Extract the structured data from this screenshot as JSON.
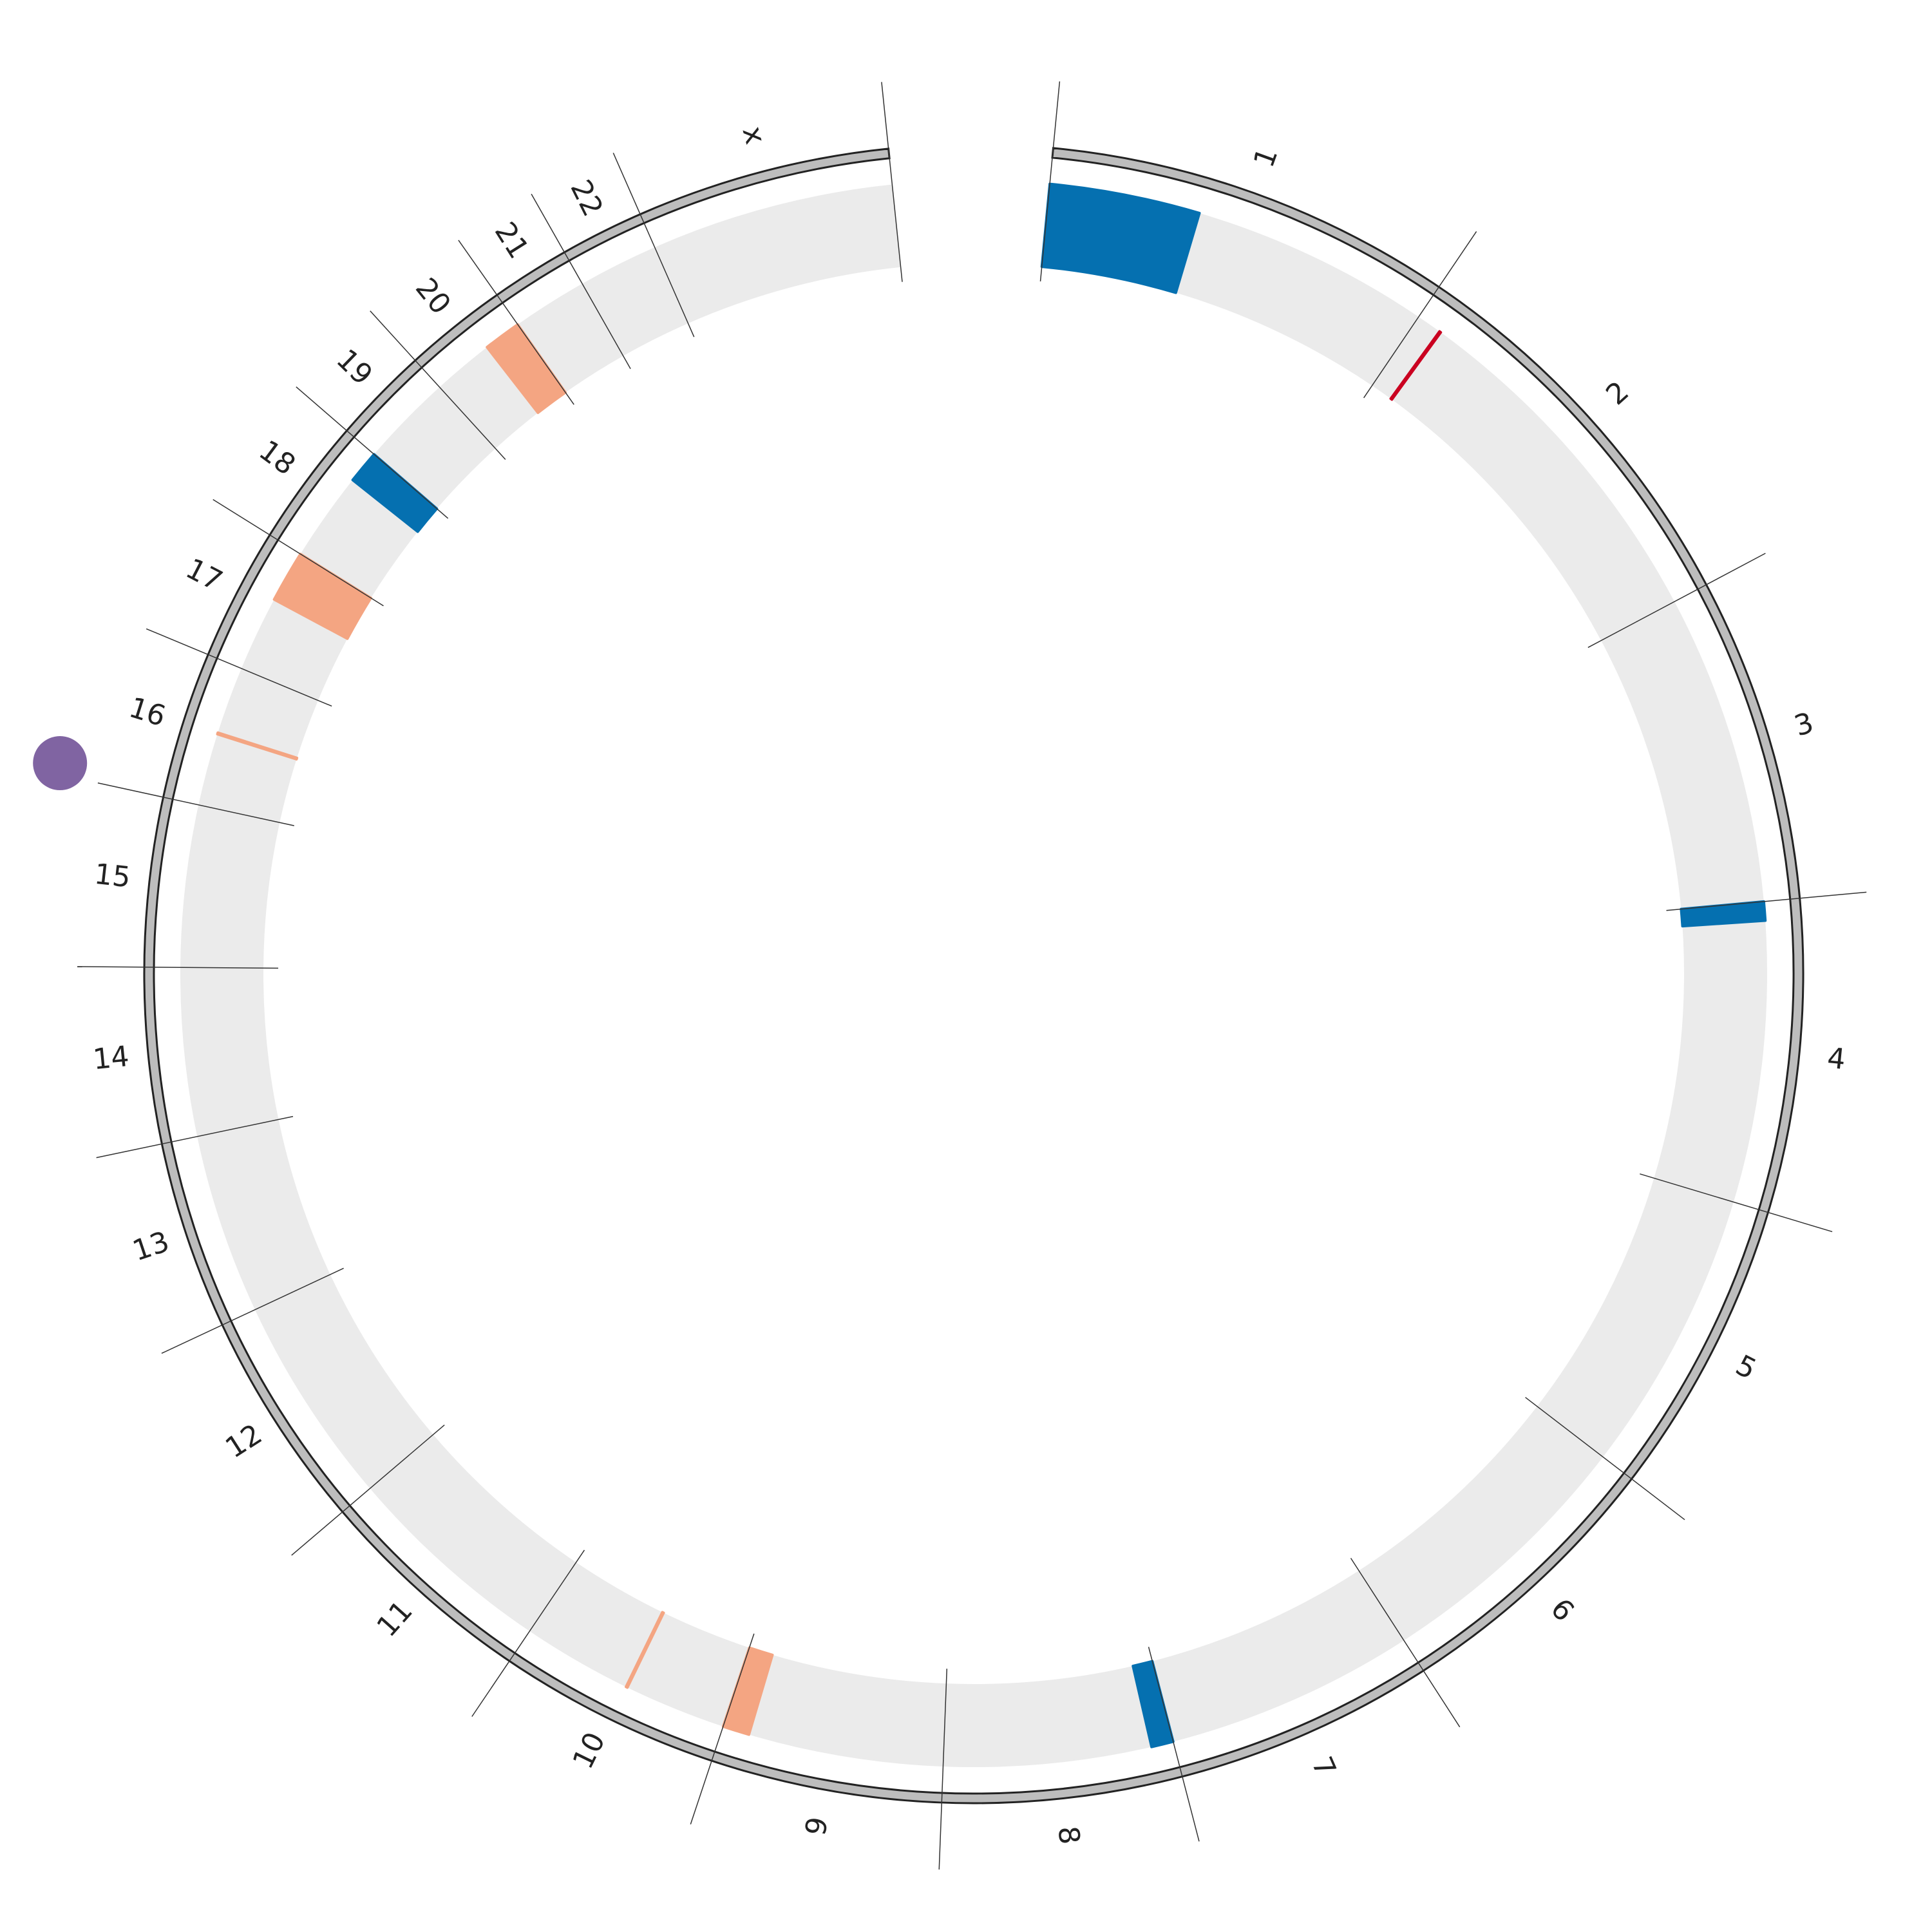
{
  "chart_data": {
    "type": "circos",
    "chromosomes": [
      {
        "name": "1",
        "length": 249
      },
      {
        "name": "2",
        "length": 243
      },
      {
        "name": "3",
        "length": 198
      },
      {
        "name": "4",
        "length": 191
      },
      {
        "name": "5",
        "length": 181
      },
      {
        "name": "6",
        "length": 171
      },
      {
        "name": "7",
        "length": 159
      },
      {
        "name": "8",
        "length": 146
      },
      {
        "name": "9",
        "length": 141
      },
      {
        "name": "10",
        "length": 136
      },
      {
        "name": "11",
        "length": 135
      },
      {
        "name": "12",
        "length": 134
      },
      {
        "name": "13",
        "length": 115
      },
      {
        "name": "14",
        "length": 107
      },
      {
        "name": "15",
        "length": 103
      },
      {
        "name": "16",
        "length": 90
      },
      {
        "name": "17",
        "length": 81
      },
      {
        "name": "18",
        "length": 78
      },
      {
        "name": "19",
        "length": 59
      },
      {
        "name": "20",
        "length": 63
      },
      {
        "name": "21",
        "length": 48
      },
      {
        "name": "22",
        "length": 51
      },
      {
        "name": "x",
        "length": 155
      }
    ],
    "track_color": "#ebebeb",
    "ring_color": "#bdbdbd",
    "regions": [
      {
        "chromosome": "1",
        "start": 0,
        "end": 96,
        "color": "#0570b0"
      },
      {
        "chromosome": "2",
        "start": 16,
        "end": 17,
        "color": "#ca0020"
      },
      {
        "chromosome": "4",
        "start": 0,
        "end": 12,
        "color": "#0570b0"
      },
      {
        "chromosome": "8",
        "start": 0,
        "end": 14,
        "color": "#0570b0"
      },
      {
        "chromosome": "9",
        "start": 124,
        "end": 141,
        "color": "#f4a582"
      },
      {
        "chromosome": "10",
        "start": 65,
        "end": 66,
        "color": "#f4a582"
      },
      {
        "chromosome": "16",
        "start": 46,
        "end": 47,
        "color": "#f4a582"
      },
      {
        "chromosome": "17",
        "start": 48,
        "end": 81,
        "color": "#f4a582"
      },
      {
        "chromosome": "18",
        "start": 57,
        "end": 78,
        "color": "#0570b0"
      },
      {
        "chromosome": "20",
        "start": 39,
        "end": 63,
        "color": "#f4a582"
      }
    ],
    "points": [
      {
        "chromosome": "16",
        "position": 6,
        "color": "#8064a2"
      }
    ]
  }
}
